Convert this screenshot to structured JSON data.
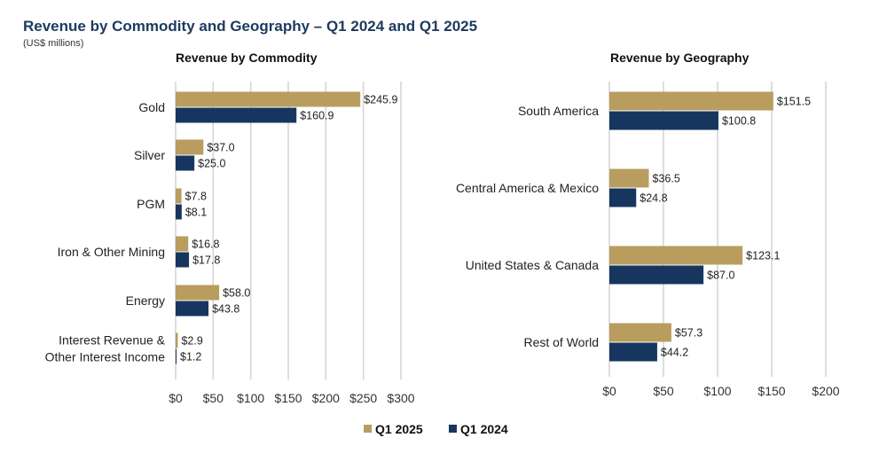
{
  "title": "Revenue by Commodity and Geography – Q1 2024 and Q1 2025",
  "subtitle": "(US$ millions)",
  "legend": [
    {
      "label": "Q1 2025",
      "color": "#b89d5f"
    },
    {
      "label": "Q1 2024",
      "color": "#17365f"
    }
  ],
  "chart_data": [
    {
      "type": "bar",
      "orientation": "horizontal",
      "title": "Revenue by Commodity",
      "categories": [
        "Gold",
        "Silver",
        "PGM",
        "Iron & Other Mining",
        "Energy",
        "Interest Revenue & Other Interest Income"
      ],
      "category_lines": [
        [
          "Gold"
        ],
        [
          "Silver"
        ],
        [
          "PGM"
        ],
        [
          "Iron & Other Mining"
        ],
        [
          "Energy"
        ],
        [
          "Interest Revenue &",
          "Other Interest Income"
        ]
      ],
      "series": [
        {
          "name": "Q1 2025",
          "values": [
            245.9,
            37.0,
            7.8,
            16.8,
            58.0,
            2.9
          ],
          "labels": [
            "$245.9",
            "$37.0",
            "$7.8",
            "$16.8",
            "$58.0",
            "$2.9"
          ]
        },
        {
          "name": "Q1 2024",
          "values": [
            160.9,
            25.0,
            8.1,
            17.8,
            43.8,
            1.2
          ],
          "labels": [
            "$160.9",
            "$25.0",
            "$8.1",
            "$17.8",
            "$43.8",
            "$1.2"
          ]
        }
      ],
      "xlim": [
        0,
        300
      ],
      "ticks": [
        0,
        50,
        100,
        150,
        200,
        250,
        300
      ],
      "tick_labels": [
        "$0",
        "$50",
        "$100",
        "$150",
        "$200",
        "$250",
        "$300"
      ],
      "grid": true,
      "legend": "bottom"
    },
    {
      "type": "bar",
      "orientation": "horizontal",
      "title": "Revenue by Geography",
      "categories": [
        "South America",
        "Central America & Mexico",
        "United States & Canada",
        "Rest of World"
      ],
      "category_lines": [
        [
          "South America"
        ],
        [
          "Central America & Mexico"
        ],
        [
          "United States & Canada"
        ],
        [
          "Rest of World"
        ]
      ],
      "series": [
        {
          "name": "Q1 2025",
          "values": [
            151.5,
            36.5,
            123.1,
            57.3
          ],
          "labels": [
            "$151.5",
            "$36.5",
            "$123.1",
            "$57.3"
          ]
        },
        {
          "name": "Q1 2024",
          "values": [
            100.8,
            24.8,
            87.0,
            44.2
          ],
          "labels": [
            "$100.8",
            "$24.8",
            "$87.0",
            "$44.2"
          ]
        }
      ],
      "xlim": [
        0,
        200
      ],
      "ticks": [
        0,
        50,
        100,
        150,
        200
      ],
      "tick_labels": [
        "$0",
        "$50",
        "$100",
        "$150",
        "$200"
      ],
      "grid": true,
      "legend": "bottom"
    }
  ]
}
